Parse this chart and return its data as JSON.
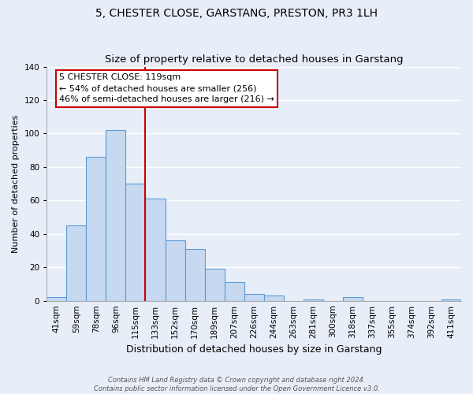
{
  "title": "5, CHESTER CLOSE, GARSTANG, PRESTON, PR3 1LH",
  "subtitle": "Size of property relative to detached houses in Garstang",
  "xlabel": "Distribution of detached houses by size in Garstang",
  "ylabel": "Number of detached properties",
  "bar_color": "#c6d9f0",
  "bar_edge_color": "#5b9bd5",
  "bin_labels": [
    "41sqm",
    "59sqm",
    "78sqm",
    "96sqm",
    "115sqm",
    "133sqm",
    "152sqm",
    "170sqm",
    "189sqm",
    "207sqm",
    "226sqm",
    "244sqm",
    "263sqm",
    "281sqm",
    "300sqm",
    "318sqm",
    "337sqm",
    "355sqm",
    "374sqm",
    "392sqm",
    "411sqm"
  ],
  "bar_heights": [
    2,
    45,
    86,
    102,
    70,
    61,
    36,
    31,
    19,
    11,
    4,
    3,
    0,
    1,
    0,
    2,
    0,
    0,
    0,
    0,
    1
  ],
  "ylim": [
    0,
    140
  ],
  "yticks": [
    0,
    20,
    40,
    60,
    80,
    100,
    120,
    140
  ],
  "vline_bin_index": 4,
  "vline_color": "#cc0000",
  "annotation_title": "5 CHESTER CLOSE: 119sqm",
  "annotation_line1": "← 54% of detached houses are smaller (256)",
  "annotation_line2": "46% of semi-detached houses are larger (216) →",
  "annotation_box_facecolor": "#ffffff",
  "annotation_box_edgecolor": "#cc0000",
  "footer_line1": "Contains HM Land Registry data © Crown copyright and database right 2024.",
  "footer_line2": "Contains public sector information licensed under the Open Government Licence v3.0.",
  "fig_facecolor": "#e8eef8",
  "plot_facecolor": "#e8eef8",
  "grid_color": "#ffffff",
  "title_fontsize": 10,
  "ylabel_fontsize": 8,
  "xlabel_fontsize": 9,
  "tick_fontsize": 7.5,
  "annot_fontsize": 8,
  "footer_fontsize": 6
}
